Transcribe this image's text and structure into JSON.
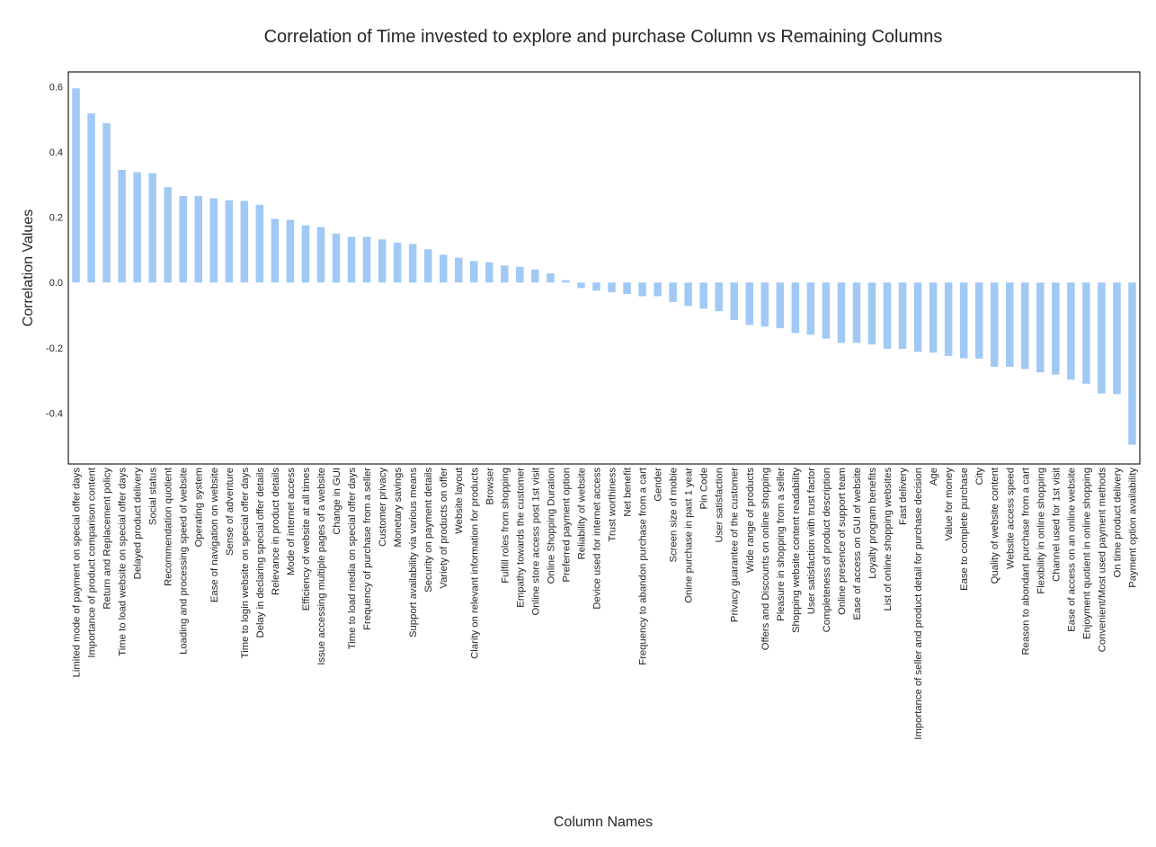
{
  "chart_data": {
    "type": "bar",
    "title": "Correlation of Time invested to explore and purchase Column vs Remaining Columns",
    "xlabel": "Column Names",
    "ylabel": "Correlation Values",
    "ylim": [
      -0.55,
      0.65
    ],
    "yticks": [
      -0.4,
      -0.2,
      0.0,
      0.2,
      0.4,
      0.6
    ],
    "ytick_labels": [
      "-0.4",
      "-0.2",
      "0.0",
      "0.2",
      "0.4",
      "0.6"
    ],
    "grid": false,
    "legend": "none",
    "bar_color": "#a1c9f4",
    "categories": [
      "Limited mode of payment on special offer days",
      "Importance of product comparison content",
      "Return and Replacement policy",
      "Time to load website on special offer days",
      "Delayed product delivery",
      "Social status",
      "Recommendation quotient",
      "Loading and processing speed of website",
      "Operating system",
      "Ease of navigation on website",
      "Sense of adventure",
      "Time to login website on special offer days",
      "Delay in declaring special offer details",
      "Relevance in product details",
      "Mode of internet access",
      "Efficiency of website at all times",
      "Issue accessing multiple pages of a website",
      "Change in GUI",
      "Time to load media on special offer days",
      "Frequency of purchase from a seller",
      "Customer privacy",
      "Monetary savings",
      "Support availability via various means",
      "Security on payment details",
      "Variety of products on offer",
      "Website layout",
      "Clarity on relevant information for products",
      "Browser",
      "Fulfill roles from shopping",
      "Empathy towards the customer",
      "Online store access post 1st visit",
      "Online Shopping Duration",
      "Preferred payment option",
      "Reliability of website",
      "Device used for internet access",
      "Trust worthiness",
      "Net benefit",
      "Frequency to abandon purchase from a cart",
      "Gender",
      "Screen size of mobie",
      "Onine purchase in past 1 year",
      "Pin Code",
      "User satisfaction",
      "Privacy guarantee of the customer",
      "Wide range of products",
      "Offers and Discounts on online shopping",
      "Pleasure in shopping from a seller",
      "Shopping website content readability",
      "User satisfaction with trust factor",
      "Completeness of product description",
      "Online presence of support team",
      "Ease of access on GUI of website",
      "Loyalty program benefits",
      "List of online shopping websites",
      "Fast delivery",
      "Importance of seller and product detail for purchase decision",
      "Age",
      "Value for money",
      "Ease to complete purchase",
      "City",
      "Quality of website content",
      "Website access speed",
      "Reason to abondant purchase from a cart",
      "Flexibility in online shopping",
      "Channel used for 1st visit",
      "Ease of access on an online website",
      "Enjoyment quotient in online shopping",
      "Convenient/Most used payment methods",
      "On time product delivery",
      "Payment option availability"
    ],
    "values": [
      0.595,
      0.518,
      0.488,
      0.345,
      0.338,
      0.335,
      0.292,
      0.265,
      0.265,
      0.258,
      0.252,
      0.25,
      0.238,
      0.195,
      0.192,
      0.175,
      0.17,
      0.15,
      0.14,
      0.14,
      0.132,
      0.122,
      0.118,
      0.102,
      0.085,
      0.076,
      0.066,
      0.062,
      0.052,
      0.048,
      0.04,
      0.028,
      0.007,
      -0.017,
      -0.025,
      -0.03,
      -0.035,
      -0.042,
      -0.042,
      -0.06,
      -0.072,
      -0.08,
      -0.088,
      -0.115,
      -0.13,
      -0.135,
      -0.14,
      -0.155,
      -0.16,
      -0.172,
      -0.185,
      -0.185,
      -0.19,
      -0.203,
      -0.203,
      -0.212,
      -0.215,
      -0.225,
      -0.232,
      -0.233,
      -0.258,
      -0.258,
      -0.265,
      -0.275,
      -0.282,
      -0.298,
      -0.31,
      -0.34,
      -0.342,
      -0.497
    ]
  }
}
